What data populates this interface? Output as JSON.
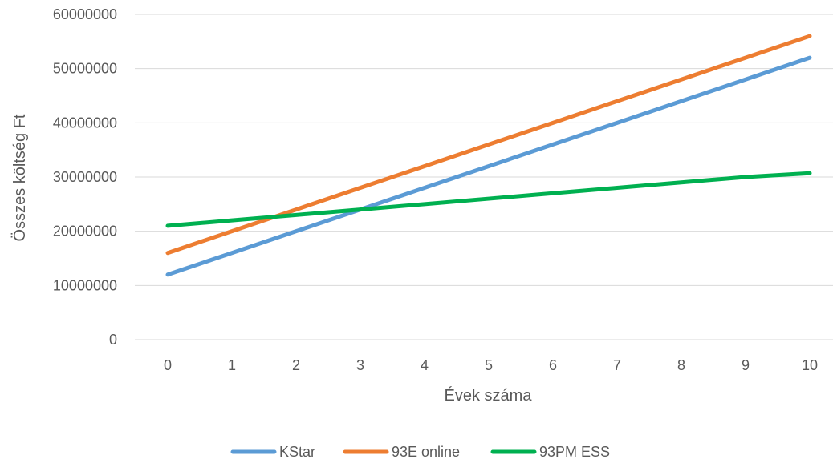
{
  "chart_data": {
    "type": "line",
    "title": "",
    "xlabel": "Évek száma",
    "ylabel": "Összes költség Ft",
    "x": [
      0,
      1,
      2,
      3,
      4,
      5,
      6,
      7,
      8,
      9,
      10
    ],
    "ylim": [
      0,
      60000000
    ],
    "yticks": [
      0,
      10000000,
      20000000,
      30000000,
      40000000,
      50000000,
      60000000
    ],
    "grid": true,
    "legend": "bottom-center",
    "series": [
      {
        "name": "KStar",
        "color": "#5B9BD5",
        "values": [
          12000000,
          16000000,
          20000000,
          24000000,
          28000000,
          32000000,
          36000000,
          40000000,
          44000000,
          48000000,
          52000000
        ]
      },
      {
        "name": "93E online",
        "color": "#ED7D31",
        "values": [
          16000000,
          20000000,
          24000000,
          28000000,
          32000000,
          36000000,
          40000000,
          44000000,
          48000000,
          52000000,
          56000000
        ]
      },
      {
        "name": "93PM ESS",
        "color": "#00B050",
        "values": [
          21000000,
          22000000,
          23000000,
          24000000,
          25000000,
          26000000,
          27000000,
          28000000,
          29000000,
          30000000,
          30700000
        ]
      }
    ]
  }
}
